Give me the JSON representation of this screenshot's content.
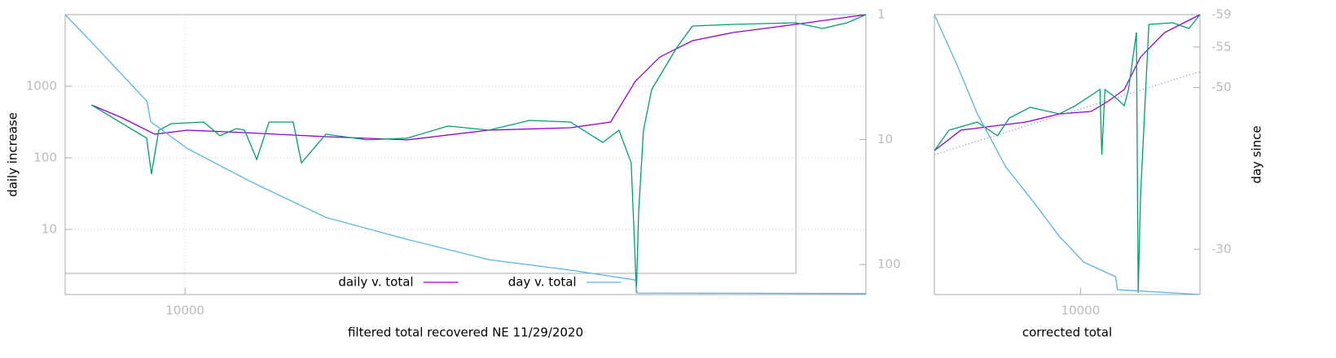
{
  "chart_data": [
    {
      "type": "line",
      "xlabel": "filtered total recovered NE 11/29/2020",
      "ylabel": "daily increase",
      "xlim": [
        7000,
        75900
      ],
      "xlog": true,
      "xticks": [
        10000
      ],
      "ylim": [
        1.23,
        10000
      ],
      "ylog": true,
      "yticks": [
        10,
        100,
        1000
      ],
      "y2lim": [
        174,
        1
      ],
      "y2log": true,
      "y2ticks": [
        1,
        10,
        100
      ],
      "grid": true,
      "legend": "bottom",
      "series": [
        {
          "name": "daily v. total",
          "color": "#9400d3",
          "x": [
            7570,
            8300,
            9140,
            10070,
            11940,
            15210,
            19370,
            24700,
            31500,
            35500,
            38200,
            41100,
            45300,
            51100,
            61500,
            75900
          ],
          "values": [
            548,
            360,
            214,
            243,
            225,
            197,
            178,
            243,
            263,
            316,
            1170,
            2560,
            4330,
            5620,
            7310,
            10000
          ]
        },
        {
          "color": "#009e73",
          "x": [
            7570,
            8920,
            9050,
            9250,
            9600,
            10570,
            11100,
            11650,
            11940,
            12380,
            12840,
            13800,
            14140,
            15210,
            17170,
            19370,
            21880,
            24700,
            27880,
            31500,
            34670,
            36400,
            37740,
            38110,
            38330,
            38590,
            39140,
            40110,
            43120,
            45270,
            51100,
            61500,
            66720,
            71750,
            75900
          ],
          "values": [
            548,
            188,
            59.3,
            243,
            300,
            316,
            203,
            256,
            243,
            95,
            316,
            316,
            85,
            214,
            178,
            188,
            278,
            243,
            333,
            316,
            164,
            243,
            85,
            6.25,
            1.3,
            17.8,
            243,
            900,
            3330,
            6930,
            7300,
            7700,
            6410,
            7700,
            10000
          ]
        },
        {
          "name": "day v. total",
          "color": "#56b4e9",
          "axis": "y2",
          "x": [
            7000,
            7710,
            8930,
            9030,
            10070,
            12230,
            15210,
            19370,
            24700,
            31500,
            38200,
            38400,
            75900
          ],
          "values": [
            1,
            1.87,
            4.95,
            7.2,
            11.8,
            22.1,
            42,
            62.9,
            91.4,
            111,
            133,
            169,
            171
          ]
        }
      ]
    },
    {
      "type": "line",
      "xlabel": "corrected total",
      "y2label": "day since",
      "xlim": [
        8000,
        12000
      ],
      "xlog": true,
      "xticks": [
        10000
      ],
      "ylim": [
        1.23,
        10000
      ],
      "ylog": true,
      "y2lim": [
        -24.4,
        -59
      ],
      "y2ticks": [
        -59,
        -55,
        -50,
        -30
      ],
      "series": [
        {
          "color": "#9400d3",
          "x": [
            8000,
            8330,
            8760,
            9200,
            9680,
            10160,
            10420,
            10690,
            10960,
            11370,
            12000
          ],
          "values": [
            126,
            243,
            278,
            316,
            411,
            444,
            608,
            900,
            2560,
            5620,
            10000
          ]
        },
        {
          "color": "#009e73",
          "x": [
            8000,
            8180,
            8540,
            8810,
            8970,
            9260,
            9680,
            9920,
            10300,
            10330,
            10380,
            10550,
            10690,
            10760,
            10890,
            10920,
            10960,
            11100,
            11510,
            11800,
            12000
          ],
          "values": [
            126,
            243,
            316,
            203,
            360,
            507,
            411,
            534,
            900,
            111,
            900,
            693,
            534,
            900,
            5620,
            1.3,
            30,
            7300,
            7700,
            6410,
            10000
          ]
        },
        {
          "color": "#56b4e9",
          "axis": "y2",
          "x": [
            8000,
            8280,
            8540,
            8920,
            9320,
            9680,
            10050,
            10550,
            10580,
            12000
          ],
          "values": [
            -59,
            -52.8,
            -46.8,
            -40.2,
            -35.7,
            -31.6,
            -28.4,
            -26.6,
            -25,
            -24.4
          ]
        },
        {
          "color": "#a070f0",
          "dash": "dotted",
          "x": [
            8000,
            12000
          ],
          "values": [
            111,
            1600
          ]
        }
      ]
    }
  ]
}
